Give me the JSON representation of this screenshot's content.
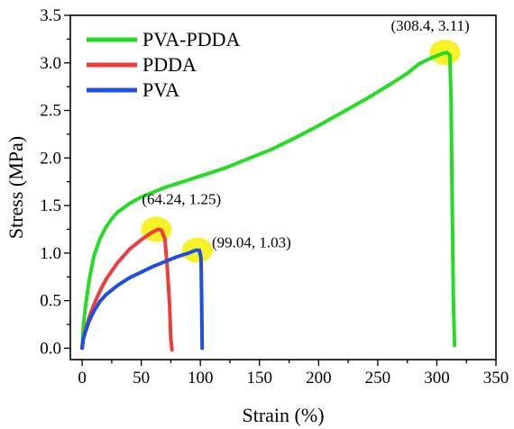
{
  "chart_data": {
    "type": "line",
    "xlabel": "Strain (%)",
    "ylabel": "Stress (MPa)",
    "xlim": [
      -10,
      350
    ],
    "ylim": [
      -0.12,
      3.5
    ],
    "xticks": [
      0,
      50,
      100,
      150,
      200,
      250,
      300,
      350
    ],
    "yticks": [
      0.0,
      0.5,
      1.0,
      1.5,
      2.0,
      2.5,
      3.0,
      3.5
    ],
    "xtick_labels": [
      "0",
      "50",
      "100",
      "150",
      "200",
      "250",
      "300",
      "350"
    ],
    "ytick_labels": [
      "0.0",
      "0.5",
      "1.0",
      "1.5",
      "2.0",
      "2.5",
      "3.0",
      "3.5"
    ],
    "grid": false,
    "legend_position": "top-left",
    "highlight_color": "#f4f000",
    "series": [
      {
        "name": "PVA-PDDA",
        "color": "#22dd22",
        "points": [
          [
            0,
            0
          ],
          [
            1,
            0.22
          ],
          [
            2,
            0.35
          ],
          [
            4,
            0.55
          ],
          [
            6,
            0.72
          ],
          [
            8,
            0.85
          ],
          [
            10,
            0.97
          ],
          [
            15,
            1.15
          ],
          [
            20,
            1.27
          ],
          [
            25,
            1.36
          ],
          [
            30,
            1.43
          ],
          [
            40,
            1.52
          ],
          [
            50,
            1.59
          ],
          [
            60,
            1.64
          ],
          [
            70,
            1.69
          ],
          [
            80,
            1.73
          ],
          [
            90,
            1.77
          ],
          [
            100,
            1.81
          ],
          [
            120,
            1.89
          ],
          [
            140,
            1.99
          ],
          [
            160,
            2.09
          ],
          [
            180,
            2.21
          ],
          [
            200,
            2.34
          ],
          [
            220,
            2.48
          ],
          [
            240,
            2.62
          ],
          [
            260,
            2.77
          ],
          [
            275,
            2.89
          ],
          [
            285,
            2.99
          ],
          [
            295,
            3.05
          ],
          [
            305,
            3.1
          ],
          [
            308.4,
            3.11
          ],
          [
            311,
            3.08
          ],
          [
            312,
            2.6
          ],
          [
            313,
            1.5
          ],
          [
            314,
            0.5
          ],
          [
            315,
            0.03
          ]
        ]
      },
      {
        "name": "PDDA",
        "color": "#ee3b3b",
        "points": [
          [
            0,
            0
          ],
          [
            1,
            0.1
          ],
          [
            3,
            0.2
          ],
          [
            6,
            0.33
          ],
          [
            10,
            0.46
          ],
          [
            15,
            0.6
          ],
          [
            20,
            0.72
          ],
          [
            30,
            0.9
          ],
          [
            40,
            1.04
          ],
          [
            50,
            1.14
          ],
          [
            58,
            1.21
          ],
          [
            64.24,
            1.25
          ],
          [
            67,
            1.24
          ],
          [
            70,
            1.15
          ],
          [
            72,
            0.85
          ],
          [
            74,
            0.45
          ],
          [
            75,
            0.1
          ],
          [
            76,
            -0.02
          ]
        ]
      },
      {
        "name": "PVA",
        "color": "#1f4ee6",
        "points": [
          [
            0,
            0
          ],
          [
            1,
            0.1
          ],
          [
            3,
            0.18
          ],
          [
            6,
            0.29
          ],
          [
            10,
            0.39
          ],
          [
            15,
            0.49
          ],
          [
            20,
            0.56
          ],
          [
            30,
            0.66
          ],
          [
            40,
            0.74
          ],
          [
            50,
            0.8
          ],
          [
            60,
            0.86
          ],
          [
            70,
            0.91
          ],
          [
            80,
            0.96
          ],
          [
            90,
            1.0
          ],
          [
            96,
            1.03
          ],
          [
            99.04,
            1.03
          ],
          [
            100.5,
            0.95
          ],
          [
            101,
            0.6
          ],
          [
            101.3,
            0.25
          ],
          [
            101.5,
            0.0
          ]
        ]
      }
    ],
    "annotations": [
      {
        "text": "(308.4, 3.11)",
        "x": 308.4,
        "y": 3.11
      },
      {
        "text": "(64.24, 1.25)",
        "x": 64.24,
        "y": 1.25
      },
      {
        "text": "(99.04, 1.03)",
        "x": 99.04,
        "y": 1.03
      }
    ]
  }
}
